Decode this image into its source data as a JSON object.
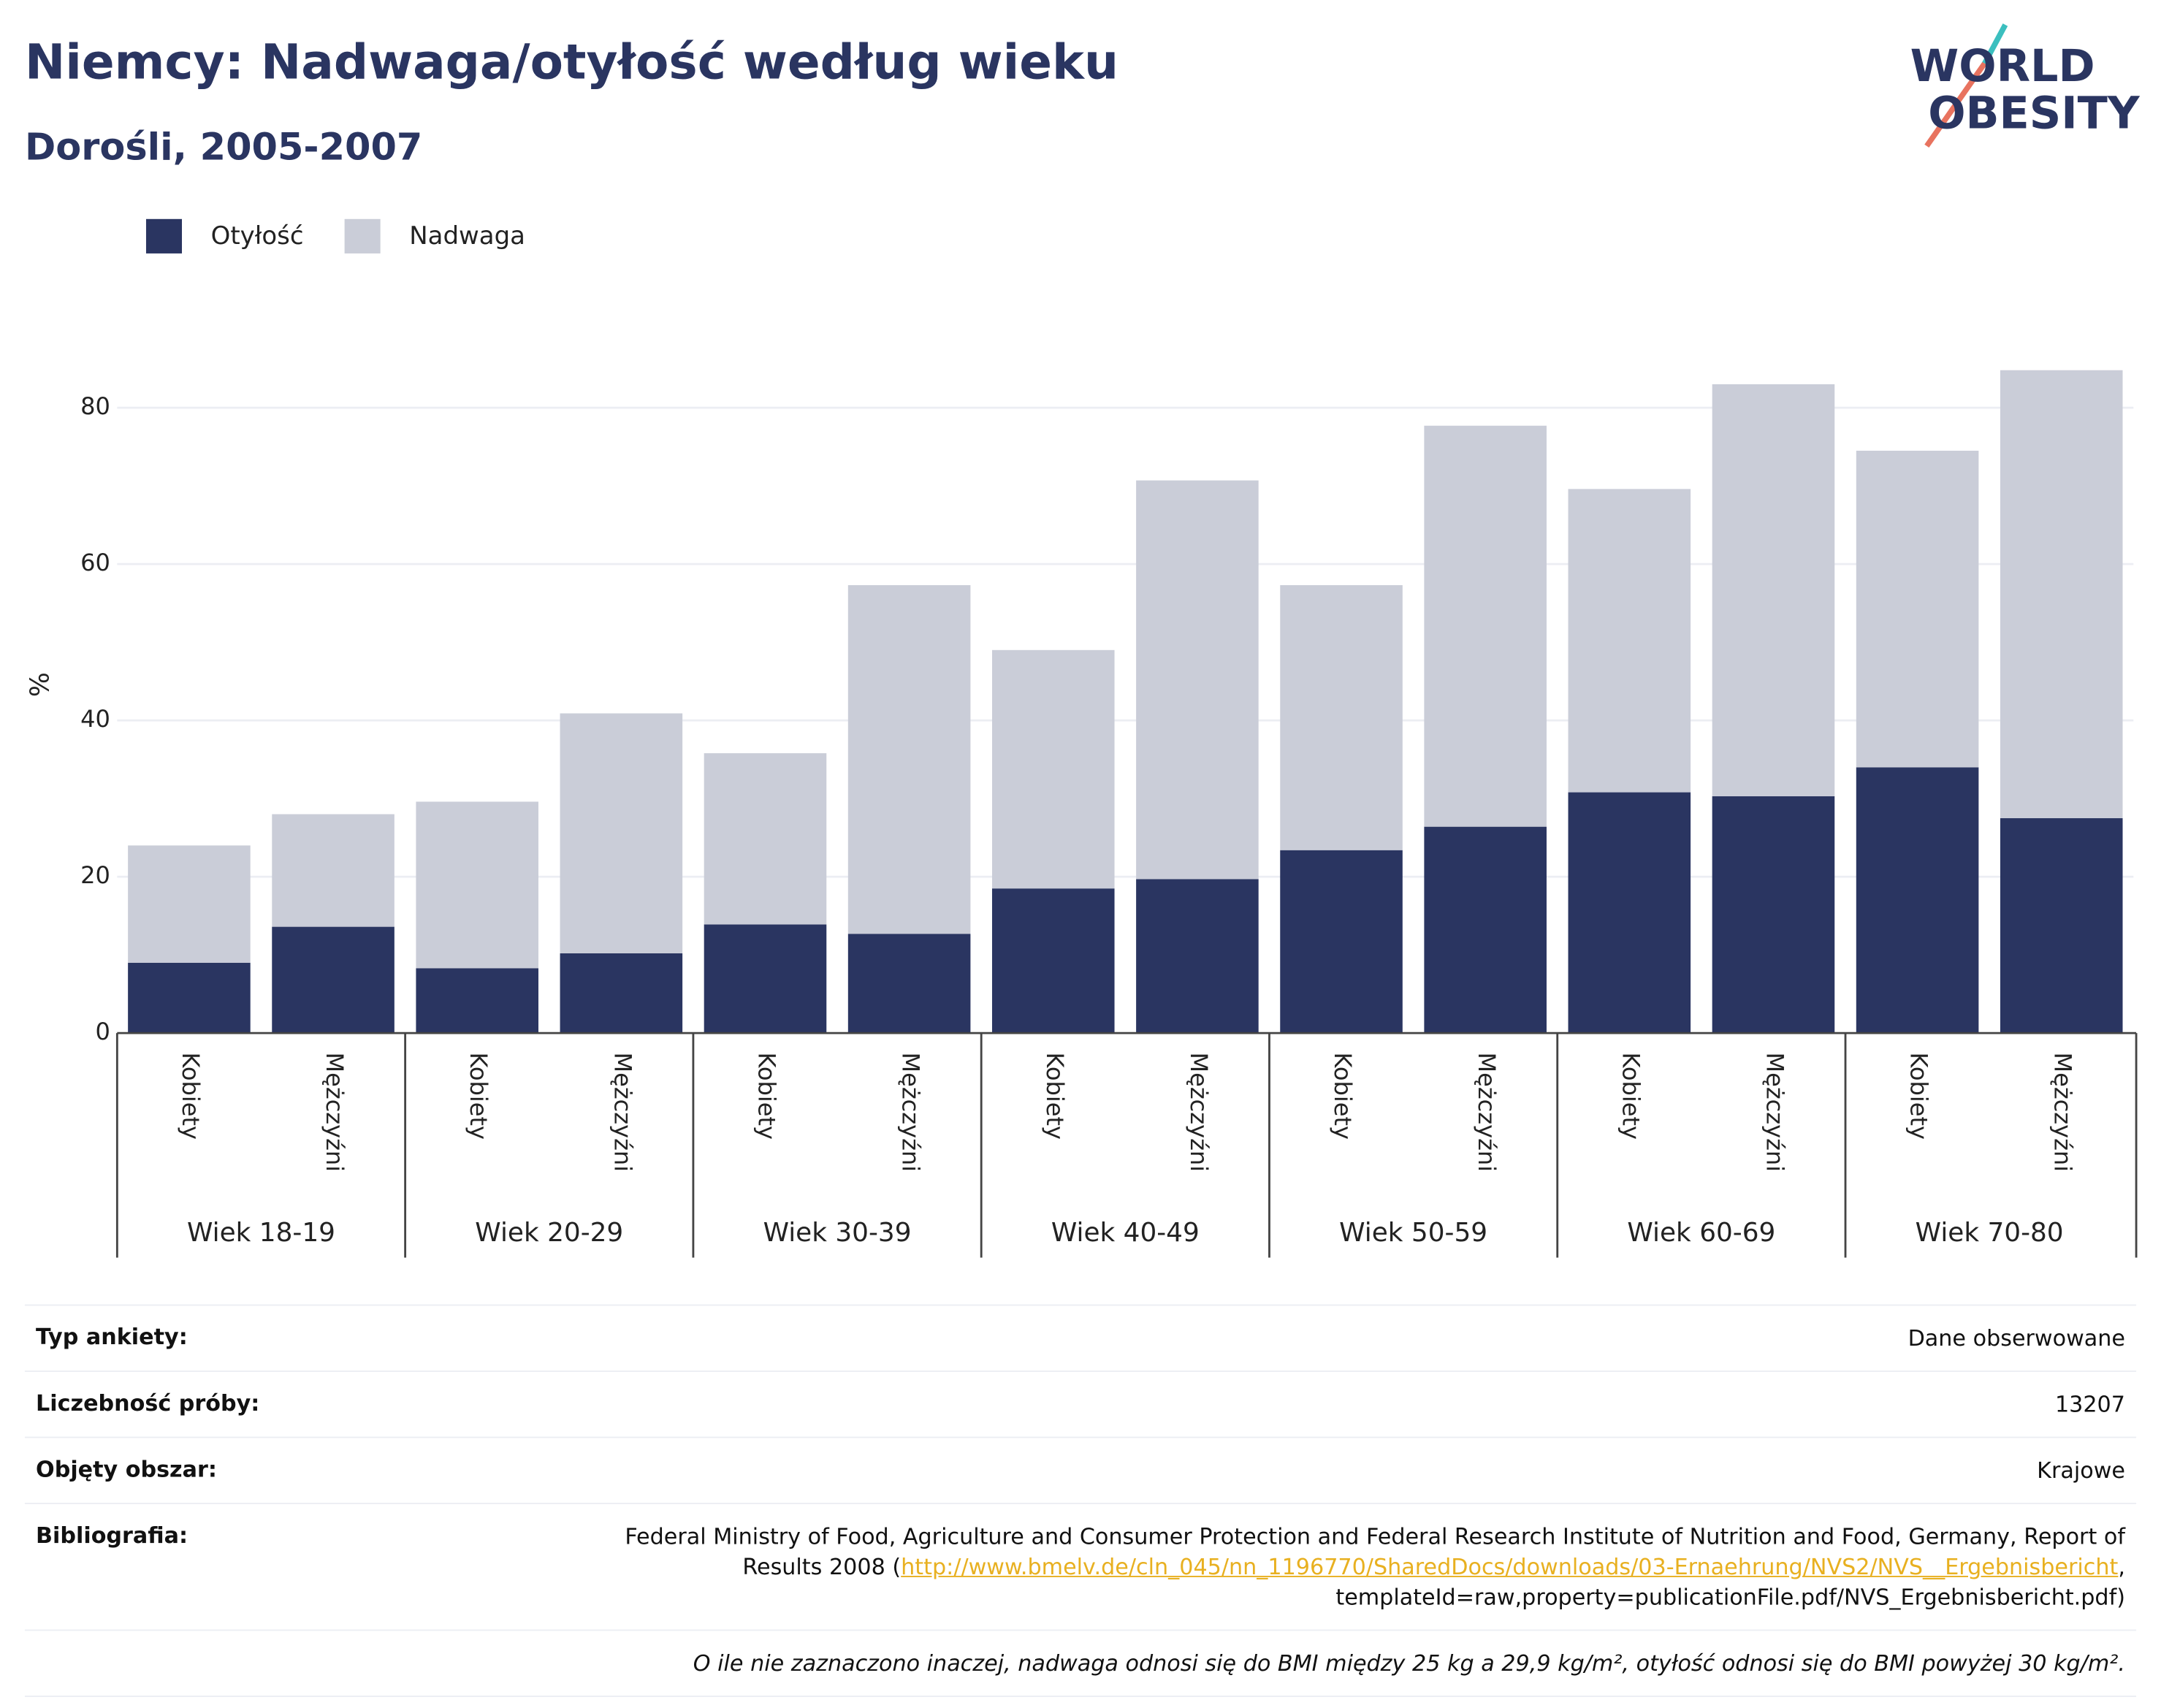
{
  "chart_data": {
    "type": "stacked_bar",
    "title": "Niemcy: Nadwaga/otyłość według wieku",
    "subtitle": "Dorośli, 2005-2007",
    "y_label": "%",
    "categories": [
      "Kobiety",
      "Mężczyźni",
      "Kobiety",
      "Mężczyźni",
      "Kobiety",
      "Mężczyźni",
      "Kobiety",
      "Mężczyźni",
      "Kobiety",
      "Mężczyźni",
      "Kobiety",
      "Mężczyźni",
      "Kobiety",
      "Mężczyźni"
    ],
    "groups": [
      "Wiek 18-19",
      "Wiek 20-29",
      "Wiek 30-39",
      "Wiek 40-49",
      "Wiek 50-59",
      "Wiek 60-69",
      "Wiek 70-80"
    ],
    "series": [
      {
        "name": "Otyłość",
        "color": "#2a3561",
        "values": [
          9.0,
          13.6,
          8.3,
          10.2,
          13.9,
          12.7,
          18.5,
          19.7,
          23.4,
          26.4,
          30.8,
          30.3,
          34.0,
          27.5
        ]
      },
      {
        "name": "Nadwaga",
        "color": "#cacdd8",
        "values": [
          15.0,
          14.4,
          21.3,
          30.7,
          21.9,
          44.6,
          30.5,
          51.0,
          33.9,
          51.3,
          38.8,
          52.7,
          40.5,
          57.3
        ]
      }
    ],
    "ylim": [
      0,
      88
    ],
    "yticks": [
      0,
      20,
      40,
      60,
      80
    ],
    "grid": true,
    "legend": "top-left"
  },
  "logo": {
    "line1": "WORLD",
    "line2": "OBESITY"
  },
  "meta": {
    "rows": [
      {
        "key": "Typ ankiety:",
        "value": "Dane obserwowane"
      },
      {
        "key": "Liczebność próby:",
        "value": "13207"
      },
      {
        "key": "Objęty obszar:",
        "value": "Krajowe"
      }
    ],
    "bibliography": {
      "key": "Bibliografia:",
      "text_before": "Federal Ministry of Food, Agriculture and Consumer Protection and Federal Research Institute of Nutrition and Food, Germany, Report of Results 2008 (",
      "link": "http://www.bmelv.de/cln_045/nn_1196770/SharedDocs/downloads/03-Ernaehrung/NVS2/NVS__Ergebnisbericht",
      "text_after": ", templateId=raw,property=publicationFile.pdf/NVS_Ergebnisbericht.pdf)"
    },
    "note": "O ile nie zaznaczono inaczej, nadwaga odnosi się do BMI między 25 kg a 29,9 kg/m², otyłość odnosi się do BMI powyżej 30 kg/m²."
  }
}
